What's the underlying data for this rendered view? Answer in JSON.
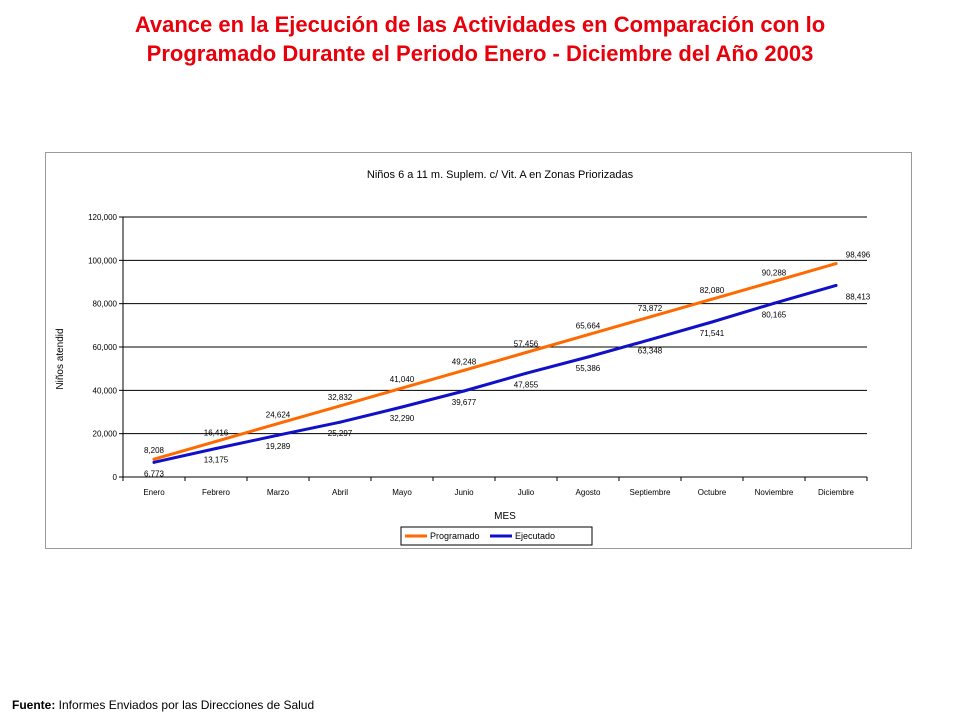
{
  "page": {
    "title_line1": "Avance en la Ejecución de las Actividades en Comparación con lo",
    "title_line2": "Programado Durante el Periodo Enero - Diciembre del Año 2003"
  },
  "footer": {
    "label": "Fuente:",
    "text": " Informes Enviados por las Direcciones de Salud"
  },
  "chart_data": {
    "type": "line",
    "title": "Niños 6 a 11 m. Suplem. c/ Vit. A en Zonas Priorizadas",
    "xlabel": "MES",
    "ylabel": "Niños atendid",
    "ylim": [
      0,
      120000
    ],
    "yticks": [
      "0",
      "20,000",
      "40,000",
      "60,000",
      "80,000",
      "100,000",
      "120,000"
    ],
    "ytick_values": [
      0,
      20000,
      40000,
      60000,
      80000,
      100000,
      120000
    ],
    "grid": true,
    "legend": "bottom-center",
    "categories": [
      "Enero",
      "Febrero",
      "Marzo",
      "Abril",
      "Mayo",
      "Junio",
      "Julio",
      "Agosto",
      "Septiembre",
      "Octubre",
      "Noviembre",
      "Diciembre"
    ],
    "series": [
      {
        "name": "Programado",
        "color": "#ff6a00",
        "values": [
          8208,
          16416,
          24624,
          32832,
          41040,
          49248,
          57456,
          65664,
          73872,
          82080,
          90288,
          98496
        ],
        "labels": [
          "8,208",
          "16,416",
          "24,624",
          "32,832",
          "41,040",
          "49,248",
          "57,456",
          "65,664",
          "73,872",
          "82,080",
          "90,288",
          "98,496"
        ]
      },
      {
        "name": "Ejecutado",
        "color": "#1010c8",
        "values": [
          6773,
          13175,
          19289,
          25297,
          32290,
          39677,
          47855,
          55386,
          63348,
          71541,
          80165,
          88413
        ],
        "labels": [
          "6,773",
          "13,175",
          "19,289",
          "25,297",
          "32,290",
          "39,677",
          "47,855",
          "55,386",
          "63,348",
          "71,541",
          "80,165",
          "88,413"
        ]
      }
    ]
  }
}
